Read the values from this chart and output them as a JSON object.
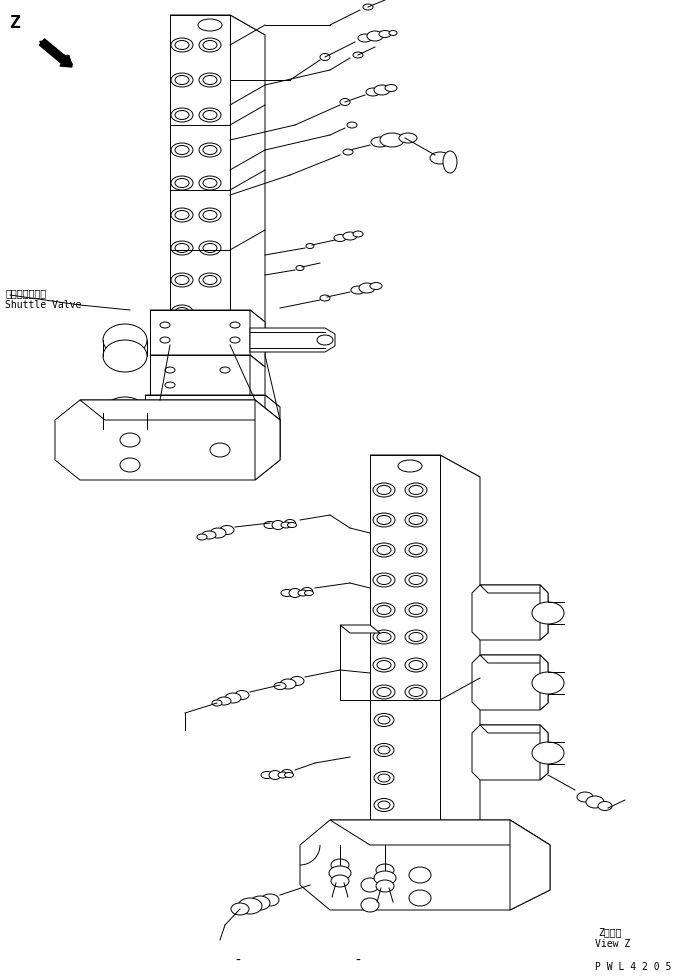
{
  "bg_color": "#ffffff",
  "line_color": "#000000",
  "fig_width": 6.96,
  "fig_height": 9.77,
  "dpi": 100,
  "label_shuttle_jp": "シャトルバルブ",
  "label_shuttle_en": "Shuttle Valve",
  "label_z_view_jp": "Z　　視",
  "label_z_view_en": "View Z",
  "label_pwl": "P W L 4 2 0 5",
  "label_z_arrow": "Z",
  "font_size_small": 7,
  "font_size_medium": 8,
  "font_size_large": 10
}
